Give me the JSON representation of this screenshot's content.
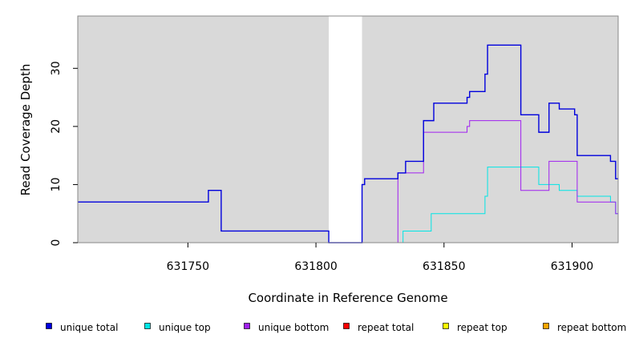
{
  "chart_data": {
    "type": "line",
    "title": "",
    "xlabel": "Coordinate in Reference Genome",
    "ylabel": "Read Coverage Depth",
    "xlim": [
      631707,
      631918
    ],
    "ylim": [
      0,
      39
    ],
    "x_ticks": [
      631750,
      631800,
      631850,
      631900
    ],
    "y_ticks": [
      0,
      10,
      20,
      30
    ],
    "grid": false,
    "background_color": "#d9d9d9",
    "gaps": [
      {
        "start": 631805,
        "end": 631818
      }
    ],
    "legend_position": "bottom",
    "series": [
      {
        "name": "unique total",
        "color": "#0000dd",
        "width": 1.4,
        "x": [
          631707,
          631758,
          631763,
          631805,
          631818,
          631819,
          631832,
          631835,
          631842,
          631846,
          631859,
          631860,
          631866,
          631867,
          631880,
          631887,
          631891,
          631895,
          631901,
          631902,
          631915,
          631917,
          631918
        ],
        "y": [
          7,
          9,
          2,
          0,
          10,
          11,
          12,
          14,
          21,
          24,
          25,
          26,
          29,
          34,
          22,
          19,
          24,
          23,
          22,
          15,
          14,
          11,
          11
        ]
      },
      {
        "name": "unique top",
        "color": "#00e5e5",
        "width": 1,
        "x": [
          631707,
          631805,
          631818,
          631834,
          631845,
          631866,
          631867,
          631887,
          631895,
          631902,
          631915,
          631917,
          631918
        ],
        "y": [
          0,
          0,
          0,
          2,
          5,
          8,
          13,
          10,
          9,
          8,
          7,
          5,
          5
        ]
      },
      {
        "name": "unique bottom",
        "color": "#a020f0",
        "width": 1,
        "x": [
          631707,
          631805,
          631818,
          631832,
          631842,
          631859,
          631860,
          631880,
          631891,
          631902,
          631917,
          631918
        ],
        "y": [
          0,
          0,
          0,
          12,
          19,
          20,
          21,
          9,
          14,
          7,
          5,
          5
        ]
      },
      {
        "name": "repeat total",
        "color": "#ff0000",
        "width": 1,
        "x": [
          631707,
          631805,
          631818,
          631918
        ],
        "y": [
          0,
          0,
          0,
          0
        ]
      },
      {
        "name": "repeat top",
        "color": "#ffff00",
        "width": 1,
        "x": [
          631707,
          631805,
          631818,
          631918
        ],
        "y": [
          0,
          0,
          0,
          0
        ]
      },
      {
        "name": "repeat bottom",
        "color": "#ffa500",
        "width": 1,
        "x": [
          631707,
          631805,
          631818,
          631918
        ],
        "y": [
          0,
          0,
          0,
          0
        ]
      }
    ]
  }
}
